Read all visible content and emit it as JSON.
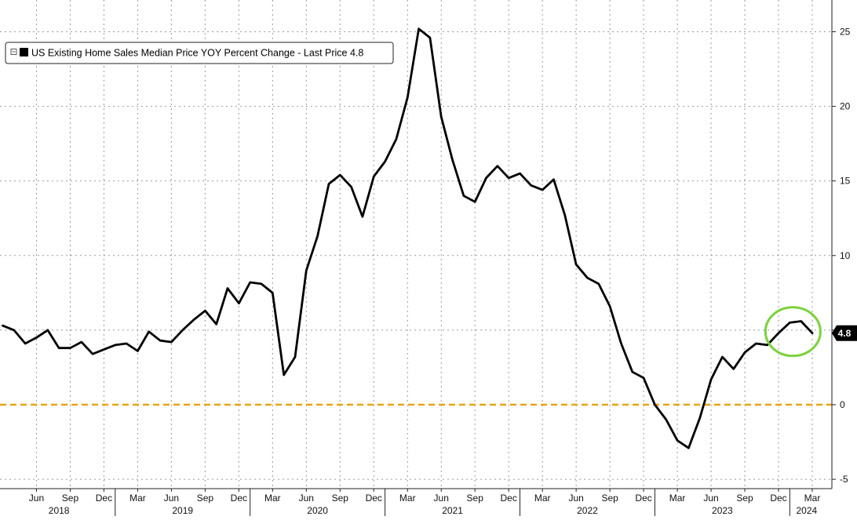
{
  "chart_data": {
    "type": "line",
    "legend": {
      "label": "US Existing Home Sales Median Price YOY Percent Change - Last Price 4.8",
      "placement": "top-left",
      "toggle_icon": "collapse-box-icon"
    },
    "last_price_label": "4.8",
    "colors": {
      "series": "#000000",
      "zero_line": "#e8a317",
      "highlight_circle": "#7bd13a",
      "grid": "#9a9a9a",
      "last_price_badge": "#000000"
    },
    "y_axis": {
      "side": "right",
      "range": [
        -5.5,
        26.5
      ],
      "ticks": [
        25,
        20,
        15,
        10,
        5,
        0,
        -5
      ],
      "tick_labels": [
        "25",
        "20",
        "15",
        "10",
        "",
        "0",
        "-5"
      ]
    },
    "x_axis": {
      "range": [
        "2018-03",
        "2024-04"
      ],
      "month_ticks": [
        {
          "date": "2018-06",
          "label": "Jun"
        },
        {
          "date": "2018-09",
          "label": "Sep"
        },
        {
          "date": "2018-12",
          "label": "Dec"
        },
        {
          "date": "2019-03",
          "label": "Mar"
        },
        {
          "date": "2019-06",
          "label": "Jun"
        },
        {
          "date": "2019-09",
          "label": "Sep"
        },
        {
          "date": "2019-12",
          "label": "Dec"
        },
        {
          "date": "2020-03",
          "label": "Mar"
        },
        {
          "date": "2020-06",
          "label": "Jun"
        },
        {
          "date": "2020-09",
          "label": "Sep"
        },
        {
          "date": "2020-12",
          "label": "Dec"
        },
        {
          "date": "2021-03",
          "label": "Mar"
        },
        {
          "date": "2021-06",
          "label": "Jun"
        },
        {
          "date": "2021-09",
          "label": "Sep"
        },
        {
          "date": "2021-12",
          "label": "Dec"
        },
        {
          "date": "2022-03",
          "label": "Mar"
        },
        {
          "date": "2022-06",
          "label": "Jun"
        },
        {
          "date": "2022-09",
          "label": "Sep"
        },
        {
          "date": "2022-12",
          "label": "Dec"
        },
        {
          "date": "2023-03",
          "label": "Mar"
        },
        {
          "date": "2023-06",
          "label": "Jun"
        },
        {
          "date": "2023-09",
          "label": "Sep"
        },
        {
          "date": "2023-12",
          "label": "Dec"
        },
        {
          "date": "2024-03",
          "label": "Mar"
        }
      ],
      "years": [
        {
          "label": "2018",
          "start": "2018-03",
          "end": "2019-01"
        },
        {
          "label": "2019",
          "start": "2019-01",
          "end": "2020-01"
        },
        {
          "label": "2020",
          "start": "2020-01",
          "end": "2021-01"
        },
        {
          "label": "2021",
          "start": "2021-01",
          "end": "2022-01"
        },
        {
          "label": "2022",
          "start": "2022-01",
          "end": "2023-01"
        },
        {
          "label": "2023",
          "start": "2023-01",
          "end": "2024-01"
        },
        {
          "label": "2024",
          "start": "2024-01",
          "end": "2024-04"
        }
      ]
    },
    "grid": true,
    "reference_lines": [
      {
        "y": 0,
        "style": "dashed"
      }
    ],
    "highlight": {
      "center": "2024-01",
      "y": 4.9,
      "note": "circled recent uptick"
    },
    "series": [
      {
        "x": [
          "2018-03",
          "2018-04",
          "2018-05",
          "2018-06",
          "2018-07",
          "2018-08",
          "2018-09",
          "2018-10",
          "2018-11",
          "2018-12",
          "2019-01",
          "2019-02",
          "2019-03",
          "2019-04",
          "2019-05",
          "2019-06",
          "2019-07",
          "2019-08",
          "2019-09",
          "2019-10",
          "2019-11",
          "2019-12",
          "2020-01",
          "2020-02",
          "2020-03",
          "2020-04",
          "2020-05",
          "2020-06",
          "2020-07",
          "2020-08",
          "2020-09",
          "2020-10",
          "2020-11",
          "2020-12",
          "2021-01",
          "2021-02",
          "2021-03",
          "2021-04",
          "2021-05",
          "2021-06",
          "2021-07",
          "2021-08",
          "2021-09",
          "2021-10",
          "2021-11",
          "2021-12",
          "2022-01",
          "2022-02",
          "2022-03",
          "2022-04",
          "2022-05",
          "2022-06",
          "2022-07",
          "2022-08",
          "2022-09",
          "2022-10",
          "2022-11",
          "2022-12",
          "2023-01",
          "2023-02",
          "2023-03",
          "2023-04",
          "2023-05",
          "2023-06",
          "2023-07",
          "2023-08",
          "2023-09",
          "2023-10",
          "2023-11",
          "2023-12",
          "2024-01",
          "2024-02",
          "2024-03"
        ],
        "values": [
          5.3,
          5.0,
          4.1,
          4.5,
          5.0,
          3.8,
          3.8,
          4.2,
          3.4,
          3.7,
          4.0,
          4.1,
          3.6,
          4.9,
          4.3,
          4.2,
          5.0,
          5.7,
          6.3,
          5.4,
          7.8,
          6.8,
          8.2,
          8.1,
          7.5,
          2.0,
          3.2,
          9.0,
          11.3,
          14.8,
          15.4,
          14.6,
          12.6,
          15.3,
          16.3,
          17.8,
          20.6,
          25.2,
          24.6,
          19.3,
          16.4,
          14.0,
          13.6,
          15.2,
          16.0,
          15.2,
          15.5,
          14.7,
          14.4,
          15.1,
          12.7,
          9.4,
          8.5,
          8.1,
          6.6,
          4.1,
          2.2,
          1.8,
          0.0,
          -1.0,
          -2.4,
          -2.9,
          -0.9,
          1.7,
          3.2,
          2.4,
          3.5,
          4.1,
          4.0,
          4.8,
          5.5,
          5.6,
          4.8
        ]
      }
    ]
  }
}
